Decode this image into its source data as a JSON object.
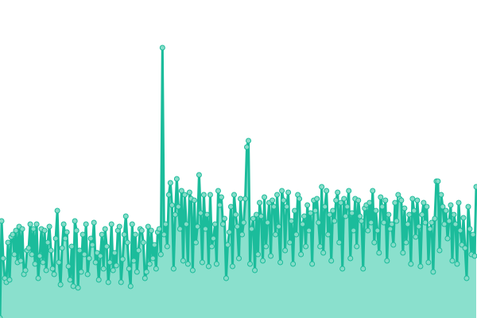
{
  "chart_data": {
    "type": "area",
    "title": "",
    "xlabel": "",
    "ylabel": "",
    "axes_visible": false,
    "grid": false,
    "legend": "none",
    "ylim": [
      0,
      400
    ],
    "colors": {
      "line": "#1bbc9b",
      "area_fill": "#8ae0cd",
      "point_fill": "#86dcc8",
      "point_stroke": "#1bbc9b"
    },
    "markers": true,
    "series": [
      {
        "values": [
          0,
          122,
          75,
          50,
          45,
          95,
          48,
          102,
          105,
          80,
          110,
          70,
          115,
          72,
          112,
          55,
          60,
          85,
          88,
          118,
          80,
          112,
          68,
          118,
          50,
          78,
          112,
          70,
          110,
          60,
          95,
          115,
          85,
          62,
          55,
          100,
          135,
          70,
          42,
          88,
          118,
          100,
          108,
          65,
          48,
          90,
          40,
          122,
          110,
          38,
          85,
          58,
          105,
          80,
          118,
          55,
          75,
          100,
          92,
          120,
          70,
          82,
          48,
          78,
          105,
          62,
          112,
          90,
          45,
          70,
          118,
          60,
          82,
          66,
          110,
          115,
          45,
          74,
          105,
          128,
          95,
          62,
          40,
          118,
          72,
          105,
          58,
          85,
          112,
          110,
          95,
          50,
          58,
          115,
          68,
          110,
          75,
          92,
          62,
          108,
          112,
          80,
          340,
          105,
          118,
          90,
          155,
          170,
          142,
          62,
          130,
          175,
          140,
          112,
          160,
          72,
          155,
          118,
          68,
          158,
          150,
          60,
          148,
          95,
          115,
          180,
          132,
          70,
          155,
          112,
          130,
          65,
          155,
          90,
          100,
          118,
          68,
          160,
          142,
          152,
          118,
          125,
          50,
          92,
          108,
          140,
          65,
          155,
          130,
          115,
          75,
          150,
          105,
          120,
          150,
          215,
          223,
          68,
          112,
          125,
          60,
          130,
          80,
          145,
          128,
          72,
          152,
          90,
          120,
          145,
          78,
          148,
          140,
          105,
          155,
          115,
          70,
          160,
          148,
          85,
          140,
          158,
          95,
          122,
          68,
          135,
          105,
          155,
          150,
          80,
          118,
          128,
          90,
          142,
          110,
          132,
          68,
          148,
          135,
          150,
          120,
          90,
          165,
          82,
          140,
          160,
          105,
          130,
          72,
          135,
          122,
          148,
          158,
          95,
          145,
          62,
          150,
          128,
          140,
          160,
          75,
          132,
          110,
          150,
          90,
          148,
          128,
          122,
          62,
          138,
          142,
          110,
          145,
          120,
          160,
          95,
          135,
          110,
          82,
          152,
          140,
          120,
          148,
          72,
          130,
          112,
          118,
          92,
          145,
          122,
          155,
          150,
          148,
          82,
          138,
          95,
          118,
          130,
          68,
          150,
          135,
          102,
          148,
          115,
          65,
          130,
          145,
          120,
          140,
          70,
          112,
          120,
          58,
          125,
          172,
          172,
          85,
          155,
          140,
          118,
          135,
          100,
          122,
          142,
          72,
          130,
          118,
          68,
          145,
          110,
          92,
          126,
          88,
          50,
          140,
          112,
          80,
          105,
          78,
          165
        ]
      }
    ]
  }
}
